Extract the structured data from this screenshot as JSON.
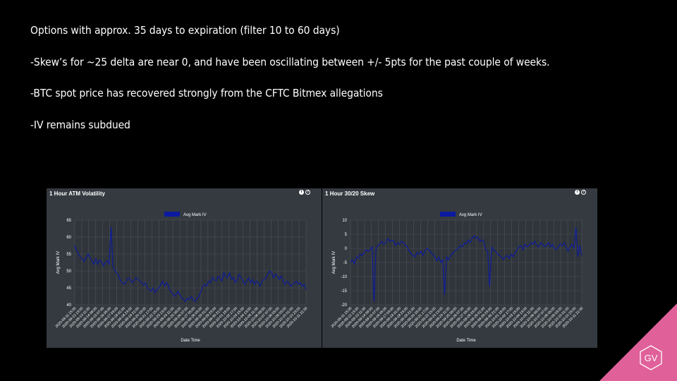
{
  "bullets": [
    "Options with approx. 35 days to expiration (filter 10 to 60 days)",
    "-Skew’s for ~25 delta are near 0, and have been oscillating between +/- 5pts for the past  couple of weeks.",
    "-BTC spot price has recovered strongly from the CFTC Bitmex allegations",
    "-IV remains subdued"
  ],
  "logo": {
    "text": "GV",
    "color": "#e0609a"
  },
  "info_icons": {
    "solid": "i",
    "ring": "?"
  },
  "chart_data": [
    {
      "type": "line",
      "title": "1 Hour ATM Volatility",
      "legend": "Avg Mark IV",
      "legend_position": "top-center",
      "xlabel": "Date Time",
      "ylabel": "Avg Mark IV",
      "ylim": [
        40,
        65
      ],
      "yticks": [
        40,
        45,
        50,
        55,
        60,
        65
      ],
      "grid": true,
      "line_color": "#0b1aa0",
      "x_ticks": [
        "2020-09-11 15:00",
        "2020-09-12 13:00",
        "2020-09-13 11:00",
        "2020-09-14 09:00",
        "2020-09-15 07:00",
        "2020-09-16 05:00",
        "2020-09-17 03:00",
        "2020-09-18 01:00",
        "2020-09-18 23:00",
        "2020-09-19 21:00",
        "2020-09-20 19:00",
        "2020-09-21 17:00",
        "2020-09-22 15:00",
        "2020-09-23 13:00",
        "2020-09-24 11:00",
        "2020-09-25 09:00",
        "2020-09-26 07:00",
        "2020-09-27 05:00",
        "2020-09-28 03:00",
        "2020-09-29 01:00",
        "2020-09-29 23:00",
        "2020-09-30 21:00",
        "2020-10-01 19:00",
        "2020-10-02 17:00",
        "2020-10-03 15:00",
        "2020-10-04 13:00",
        "2020-10-05 11:00",
        "2020-10-06 09:00",
        "2020-10-07 07:00",
        "2020-10-08 05:00",
        "2020-10-09 03:00",
        "2020-10-10 01:00",
        "2020-10-10 23:00",
        "2020-10-11 21:00"
      ],
      "values": [
        57.5,
        56,
        55,
        54,
        53.5,
        52.8,
        54,
        55,
        53.8,
        53,
        52,
        53.5,
        52,
        53.2,
        52.8,
        51.5,
        52.5,
        53,
        52,
        63,
        51.5,
        50,
        49.5,
        48.5,
        47,
        46.5,
        46,
        47,
        48,
        47.5,
        46.5,
        47,
        48,
        47.5,
        47,
        46.5,
        45.8,
        46.5,
        45,
        44.5,
        44,
        45,
        43.5,
        44.5,
        45,
        46,
        47,
        45.5,
        46.5,
        45.5,
        44,
        43.5,
        42.5,
        43,
        44,
        43,
        42,
        41.5,
        41,
        42,
        41.5,
        42.5,
        41.5,
        41,
        41.8,
        42.5,
        44,
        45.5,
        46,
        45.5,
        47,
        46.5,
        48,
        47.5,
        47,
        48.5,
        48,
        47,
        49.5,
        48.5,
        48,
        49.5,
        47.5,
        48,
        46.5,
        47.5,
        49,
        48,
        47,
        46,
        47,
        48,
        46.5,
        47.5,
        46,
        47,
        46.5,
        45.5,
        47,
        47.5,
        48,
        49,
        50,
        49.5,
        48,
        49,
        48.5,
        47.5,
        48.5,
        47,
        46,
        47,
        46.5,
        45.5,
        46,
        46.5,
        47,
        46,
        46.5,
        45.5,
        46,
        44.5
      ]
    },
    {
      "type": "line",
      "title": "1 Hour 30/20 Skew",
      "legend": "Avg Mark IV",
      "legend_position": "top-center",
      "xlabel": "Date Time",
      "ylabel": "Avg Mark IV",
      "ylim": [
        -20,
        10
      ],
      "yticks": [
        -20,
        -15,
        -10,
        -5,
        0,
        5,
        10
      ],
      "grid": true,
      "line_color": "#0b1aa0",
      "x_ticks": [
        "2020-09-11 15:00",
        "2020-09-12 13:00",
        "2020-09-13 11:00",
        "2020-09-14 09:00",
        "2020-09-15 07:00",
        "2020-09-16 05:00",
        "2020-09-17 03:00",
        "2020-09-18 01:00",
        "2020-09-18 23:00",
        "2020-09-19 21:00",
        "2020-09-20 19:00",
        "2020-09-21 17:00",
        "2020-09-22 15:00",
        "2020-09-23 13:00",
        "2020-09-24 11:00",
        "2020-09-25 09:00",
        "2020-09-26 07:00",
        "2020-09-27 05:00",
        "2020-09-28 03:00",
        "2020-09-29 01:00",
        "2020-09-29 23:00",
        "2020-09-30 21:00",
        "2020-10-01 19:00",
        "2020-10-02 17:00",
        "2020-10-03 15:00",
        "2020-10-04 13:00",
        "2020-10-05 11:00",
        "2020-10-06 09:00",
        "2020-10-07 07:00",
        "2020-10-08 05:00",
        "2020-10-09 03:00",
        "2020-10-10 01:00",
        "2020-10-10 23:00",
        "2020-10-11 21:00"
      ],
      "values": [
        -5,
        -4,
        -5.5,
        -3,
        -3.5,
        -2,
        -2.5,
        -1.5,
        -0.5,
        -1,
        -0.5,
        0.5,
        -19,
        0,
        1,
        1.5,
        2.5,
        1.5,
        2,
        3.5,
        2.5,
        3,
        2.5,
        1,
        2,
        1.5,
        2.5,
        2,
        1,
        0.5,
        -1,
        -2,
        -2.5,
        -3,
        -1.5,
        -2,
        -1,
        -2.5,
        -1,
        0,
        -0.5,
        -1.5,
        -2,
        -3,
        -4.5,
        -3,
        -5,
        -4,
        -16.5,
        -3,
        -4,
        -2.5,
        -2,
        -1,
        -0.5,
        0,
        1,
        0.5,
        2,
        1.5,
        3,
        2,
        3.5,
        4.5,
        3.5,
        4,
        2.5,
        3,
        2.5,
        -0.5,
        -1,
        -13.5,
        0.5,
        -0.5,
        -1,
        -2,
        -2.5,
        -3,
        -4,
        -3,
        -2.5,
        -3.5,
        -2,
        -3,
        -1.5,
        -0.5,
        0.5,
        1,
        -0.5,
        1.5,
        0.5,
        1,
        2,
        1.5,
        2.5,
        1,
        0.5,
        2,
        1.5,
        0.5,
        1,
        2,
        0.5,
        1.5,
        0,
        -0.5,
        0.5,
        1.5,
        1,
        2,
        0.5,
        -1,
        0.5,
        1.5,
        0,
        7.5,
        -3,
        1,
        -2.5
      ]
    }
  ]
}
